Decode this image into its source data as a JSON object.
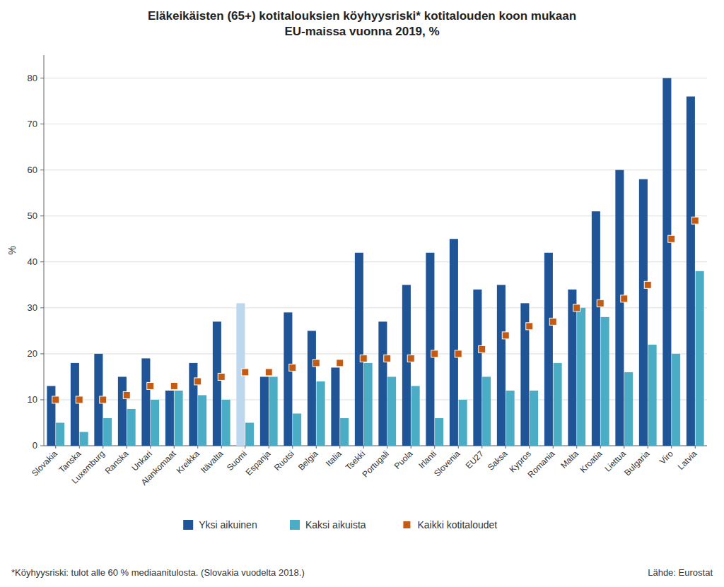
{
  "chart_data": {
    "type": "bar",
    "title": "Eläkeikäisten (65+) kotitalouksien köyhyysriski* kotitalouden koon mukaan\nEU-maissa vuonna 2019, %",
    "y_label": "%",
    "categories": [
      "Slovakia",
      "Tanska",
      "Luxemburg",
      "Ranska",
      "Unkari",
      "Alankomaat",
      "Kreikka",
      "Itävalta",
      "Suomi",
      "Espanja",
      "Ruotsi",
      "Belgia",
      "Italia",
      "Tsekki",
      "Portugali",
      "Puola",
      "Irlanti",
      "Slovenia",
      "EU27",
      "Saksa",
      "Kypros",
      "Romania",
      "Malta",
      "Kroatia",
      "Liettua",
      "Bulgaria",
      "Viro",
      "Latvia"
    ],
    "series": [
      {
        "name": "Yksi aikuinen",
        "type": "bar",
        "color": "#1F5496",
        "colors": [
          "#1F5496",
          "#1F5496",
          "#1F5496",
          "#1F5496",
          "#1F5496",
          "#1F5496",
          "#1F5496",
          "#1F5496",
          "#BDD7EE",
          "#1F5496",
          "#1F5496",
          "#1F5496",
          "#1F5496",
          "#1F5496",
          "#1F5496",
          "#1F5496",
          "#1F5496",
          "#1F5496",
          "#1F5496",
          "#1F5496",
          "#1F5496",
          "#1F5496",
          "#1F5496",
          "#1F5496",
          "#1F5496",
          "#1F5496",
          "#1F5496",
          "#1F5496"
        ],
        "values": [
          13,
          18,
          20,
          15,
          19,
          12,
          18,
          27,
          31,
          15,
          29,
          25,
          17,
          42,
          27,
          35,
          42,
          45,
          34,
          35,
          31,
          42,
          34,
          51,
          60,
          58,
          80,
          76
        ]
      },
      {
        "name": "Kaksi aikuista",
        "type": "bar",
        "color": "#4BACC6",
        "values": [
          5,
          3,
          6,
          8,
          10,
          12,
          11,
          10,
          5,
          15,
          7,
          14,
          6,
          18,
          15,
          13,
          6,
          10,
          15,
          12,
          12,
          18,
          30,
          28,
          16,
          22,
          20,
          38
        ]
      },
      {
        "name": "Kaikki kotitaloudet",
        "type": "scatter",
        "marker": "square",
        "color": "#C55A11",
        "values": [
          10,
          10,
          10,
          11,
          13,
          13,
          14,
          15,
          16,
          16,
          17,
          18,
          18,
          19,
          19,
          19,
          20,
          20,
          21,
          24,
          26,
          27,
          30,
          31,
          32,
          35,
          45,
          49
        ]
      }
    ],
    "ylim": [
      0,
      85
    ],
    "yticks": [
      0,
      10,
      20,
      30,
      40,
      50,
      60,
      70,
      80
    ],
    "grid": true,
    "legend": "bottom",
    "annotations": [
      "*Köyhyysriski: tulot alle 60 % mediaanitulosta. (Slovakia vuodelta 2018.)",
      "Lähde: Eurostat"
    ]
  }
}
